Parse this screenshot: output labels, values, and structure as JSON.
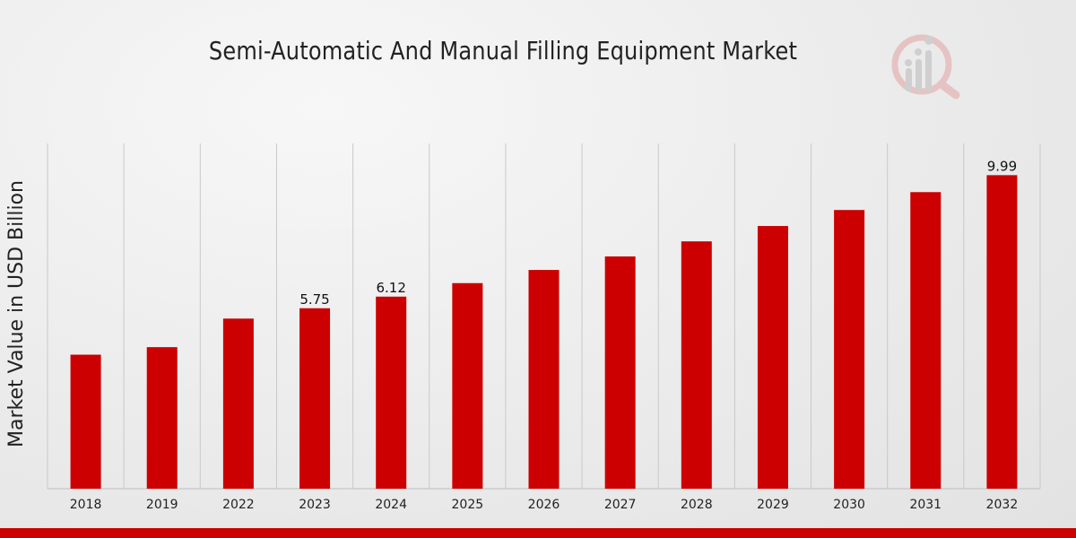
{
  "chart_data": {
    "type": "bar",
    "title": "Semi-Automatic And Manual Filling Equipment Market",
    "xlabel": "",
    "ylabel": "Market Value in USD Billion",
    "categories": [
      "2018",
      "2019",
      "2022",
      "2023",
      "2024",
      "2025",
      "2026",
      "2027",
      "2028",
      "2029",
      "2030",
      "2031",
      "2032"
    ],
    "values": [
      4.27,
      4.51,
      5.42,
      5.75,
      6.12,
      6.55,
      6.97,
      7.4,
      7.88,
      8.37,
      8.88,
      9.45,
      9.99
    ],
    "data_labels": {
      "2023": "5.75",
      "2024": "6.12",
      "2032": "9.99"
    },
    "ylim": [
      0,
      11
    ],
    "grid": "vertical",
    "legend": "none",
    "bar_color": "#cc0000"
  },
  "logo": {
    "icon": "market-research-logo-icon"
  }
}
